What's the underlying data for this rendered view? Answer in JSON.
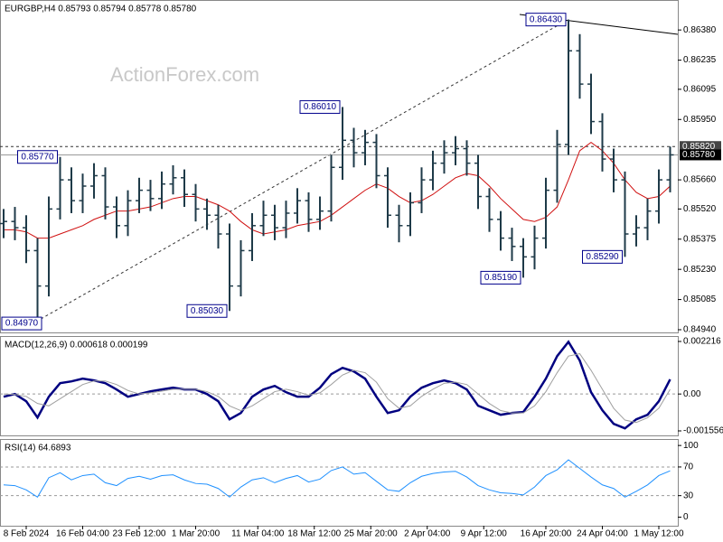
{
  "chart_data": [
    {
      "type": "ohlc",
      "title": "EURGBP,H4  0.85793 0.85794 0.85778 0.85780",
      "watermark": "ActionForex.com",
      "color": "#1e3a48",
      "xlim": [
        0,
        59
      ],
      "ylim": [
        0.84927,
        0.86524
      ],
      "yticks": [
        {
          "value": 0.8638,
          "label": "0.86380"
        },
        0.86235,
        0.86095,
        {
          "value": 0.8595,
          "label": "0.85950"
        },
        {
          "value": 0.8566,
          "label": "0.85660"
        },
        {
          "value": 0.8552,
          "label": "0.85520"
        },
        0.85375,
        {
          "value": 0.8523,
          "label": "0.85230"
        },
        0.85085,
        {
          "value": 0.8494,
          "label": "0.84940"
        }
      ],
      "open": [
        0.8545,
        0.8546,
        0.8543,
        0.8532,
        0.8515,
        0.8552,
        0.8566,
        0.8556,
        0.8563,
        0.8568,
        0.8553,
        0.8544,
        0.8556,
        0.8561,
        0.8557,
        0.8564,
        0.8567,
        0.8559,
        0.8552,
        0.8549,
        0.854,
        0.8515,
        0.8532,
        0.8544,
        0.8549,
        0.8543,
        0.855,
        0.8556,
        0.8547,
        0.8551,
        0.8572,
        0.8585,
        0.8579,
        0.8584,
        0.8568,
        0.8549,
        0.8544,
        0.8555,
        0.8566,
        0.8574,
        0.8579,
        0.8581,
        0.8574,
        0.8558,
        0.8547,
        0.8538,
        0.8534,
        0.8529,
        0.8538,
        0.8561,
        0.8583,
        0.8628,
        0.8612,
        0.8594,
        0.8576,
        0.8566,
        0.854,
        0.8543,
        0.8551,
        0.8566
      ],
      "high": [
        0.8552,
        0.8553,
        0.8549,
        0.8538,
        0.8558,
        0.8577,
        0.8572,
        0.8569,
        0.8574,
        0.8572,
        0.8558,
        0.8561,
        0.8567,
        0.8566,
        0.857,
        0.8573,
        0.8571,
        0.8564,
        0.8557,
        0.8554,
        0.8545,
        0.8537,
        0.855,
        0.8556,
        0.8554,
        0.8556,
        0.8562,
        0.856,
        0.8558,
        0.8578,
        0.8601,
        0.8591,
        0.859,
        0.8588,
        0.8572,
        0.8554,
        0.856,
        0.8572,
        0.858,
        0.8585,
        0.8587,
        0.8585,
        0.8578,
        0.8562,
        0.8551,
        0.8543,
        0.8538,
        0.8544,
        0.8567,
        0.859,
        0.8643,
        0.8636,
        0.8617,
        0.8598,
        0.8581,
        0.857,
        0.8549,
        0.8557,
        0.8571,
        0.8582
      ],
      "low": [
        0.8538,
        0.8537,
        0.8526,
        0.8497,
        0.851,
        0.8547,
        0.855,
        0.855,
        0.8557,
        0.8547,
        0.8538,
        0.8539,
        0.855,
        0.8551,
        0.8552,
        0.8559,
        0.8553,
        0.8546,
        0.8542,
        0.8533,
        0.8503,
        0.851,
        0.8527,
        0.8539,
        0.8537,
        0.8538,
        0.8545,
        0.8541,
        0.8542,
        0.8546,
        0.8566,
        0.8572,
        0.8573,
        0.8562,
        0.8543,
        0.8536,
        0.8539,
        0.855,
        0.8561,
        0.8569,
        0.8573,
        0.8568,
        0.8552,
        0.8541,
        0.8532,
        0.8527,
        0.8519,
        0.8523,
        0.8533,
        0.8555,
        0.8578,
        0.8605,
        0.8588,
        0.857,
        0.856,
        0.8529,
        0.8534,
        0.8537,
        0.8545,
        0.856
      ],
      "close": [
        0.8546,
        0.8543,
        0.8532,
        0.8515,
        0.8552,
        0.8566,
        0.8556,
        0.8563,
        0.8568,
        0.8553,
        0.8544,
        0.8556,
        0.8561,
        0.8557,
        0.8564,
        0.8567,
        0.8559,
        0.8552,
        0.8549,
        0.854,
        0.8515,
        0.8532,
        0.8544,
        0.8549,
        0.8543,
        0.855,
        0.8556,
        0.8547,
        0.8551,
        0.8572,
        0.8585,
        0.8579,
        0.8584,
        0.8568,
        0.8549,
        0.8544,
        0.8555,
        0.8566,
        0.8574,
        0.8579,
        0.8581,
        0.8574,
        0.8558,
        0.8547,
        0.8538,
        0.8534,
        0.8529,
        0.8538,
        0.8561,
        0.8583,
        0.8628,
        0.8612,
        0.8594,
        0.8576,
        0.8566,
        0.854,
        0.8543,
        0.8551,
        0.8566,
        0.8578
      ],
      "ma": {
        "color": "#d01010",
        "values": [
          0.8542,
          0.8542,
          0.8541,
          0.8538,
          0.8538,
          0.854,
          0.8542,
          0.8544,
          0.8547,
          0.8549,
          0.8551,
          0.8551,
          0.8552,
          0.8553,
          0.8555,
          0.8557,
          0.8558,
          0.8558,
          0.8556,
          0.8554,
          0.8551,
          0.8546,
          0.8542,
          0.854,
          0.8541,
          0.8542,
          0.8544,
          0.8545,
          0.8546,
          0.8549,
          0.8553,
          0.8557,
          0.8561,
          0.8564,
          0.8562,
          0.8558,
          0.8555,
          0.8556,
          0.8559,
          0.8563,
          0.8567,
          0.8569,
          0.8568,
          0.8563,
          0.8557,
          0.8552,
          0.8547,
          0.8546,
          0.8548,
          0.8553,
          0.8566,
          0.858,
          0.8584,
          0.858,
          0.8574,
          0.8566,
          0.856,
          0.8557,
          0.8558,
          0.8563
        ]
      },
      "annotations": [
        {
          "value": 0.8497,
          "label": "0.84970"
        },
        {
          "value": 0.8577,
          "label": "0.85770"
        },
        {
          "value": 0.8503,
          "label": "0.85030"
        },
        {
          "value": 0.8601,
          "label": "0.86010"
        },
        {
          "value": 0.8643,
          "label": "0.86430"
        },
        {
          "value": 0.8519,
          "label": "0.85190"
        },
        {
          "value": 0.8529,
          "label": "0.85290"
        }
      ],
      "levels": [
        {
          "value": 0.8582,
          "label": "0.85820",
          "style": "dashed",
          "color": "#444444"
        },
        {
          "value": 0.8578,
          "label": "0.85780",
          "style": "solid",
          "color": "#000000"
        }
      ]
    },
    {
      "type": "line",
      "title": "MACD(12,26,9) 0.000618 0.000199",
      "xlim": [
        0,
        59
      ],
      "ylim": [
        -0.001746,
        0.002445
      ],
      "yticks": [
        0.002216,
        {
          "value": 0,
          "label": "0.00"
        },
        -0.001556
      ],
      "zero_line": true,
      "series": [
        {
          "color": "#000080",
          "width": 2.5,
          "values": [
            -0.000114,
            0,
            -0.000305,
            -0.000991,
            -0.000114,
            0.000457,
            0.000533,
            0.000648,
            0.000572,
            0.000457,
            0.000191,
            -0.000114,
            0,
            0.000114,
            0.000191,
            0.000267,
            0.000191,
            0.000191,
            0,
            -0.000305,
            -0.001067,
            -0.0008,
            -0.000114,
            0.000191,
            0.000343,
            7.6e-05,
            -0.000114,
            -0.000114,
            0.000267,
            0.000838,
            0.001105,
            0.000953,
            0.000648,
            -0.000114,
            -0.0008,
            -0.000686,
            -0.000114,
            0.000267,
            0.000457,
            0.000572,
            0.000457,
            0.000191,
            -0.000495,
            -0.000686,
            -0.000876,
            -0.0008,
            -0.000762,
            -0.000114,
            0.000648,
            0.0016,
            0.0022,
            0.00141,
            7.6e-05,
            -0.000686,
            -0.001257,
            -0.001448,
            -0.001067,
            -0.000876,
            -0.000305,
            0.000618
          ]
        },
        {
          "color": "#a0a0a0",
          "width": 1,
          "values": [
            0,
            -2e-05,
            -0.0001,
            -0.0004,
            -0.0005,
            -0.0002,
            0.0001,
            0.0004,
            0.00055,
            0.00055,
            0.0004,
            0.00015,
            0,
            5e-05,
            0.00012,
            0.0002,
            0.0002,
            0.0002,
            0.0001,
            -0.0001,
            -0.0005,
            -0.0007,
            -0.0005,
            -0.0002,
            0.0001,
            0.0002,
            0.0001,
            -5e-05,
            5e-05,
            0.0004,
            0.0008,
            0.001,
            0.0009,
            0.0005,
            -0.0002,
            -0.0006,
            -0.0005,
            -0.0001,
            0.0002,
            0.00045,
            0.0005,
            0.0004,
            0,
            -0.0004,
            -0.0007,
            -0.0008,
            -0.0008,
            -0.0005,
            0.0001,
            0.0009,
            0.0016,
            0.0017,
            0.001,
            0.0002,
            -0.0006,
            -0.0011,
            -0.0012,
            -0.001,
            -0.0006,
            0.000199
          ]
        }
      ]
    },
    {
      "type": "line",
      "title": "RSI(14) 64.6893",
      "xlim": [
        0,
        59
      ],
      "ylim": [
        -12,
        109
      ],
      "yticks": [
        100,
        70,
        30,
        0
      ],
      "levels": [
        70,
        30
      ],
      "series": [
        {
          "color": "#1e90ff",
          "width": 1,
          "values": [
            45,
            44,
            38,
            28,
            55,
            62,
            52,
            58,
            60,
            48,
            44,
            54,
            57,
            53,
            58,
            59,
            52,
            47,
            46,
            40,
            28,
            42,
            52,
            55,
            48,
            54,
            58,
            49,
            53,
            65,
            70,
            60,
            62,
            50,
            38,
            36,
            48,
            57,
            61,
            63,
            64,
            56,
            44,
            38,
            34,
            33,
            31,
            42,
            58,
            66,
            80,
            68,
            56,
            45,
            40,
            28,
            36,
            45,
            58,
            64.6893
          ]
        }
      ],
      "xticks": [
        {
          "value": 2,
          "label": "8 Feb 2024"
        },
        {
          "value": 7,
          "label": "16 Feb 04:00"
        },
        {
          "value": 12,
          "label": "23 Feb 12:00"
        },
        {
          "value": 17,
          "label": "1 Mar 20:00"
        },
        {
          "value": 22.5,
          "label": "11 Mar 04:00"
        },
        {
          "value": 27.5,
          "label": "18 Mar 12:00"
        },
        {
          "value": 32.5,
          "label": "25 Mar 20:00"
        },
        {
          "value": 37.5,
          "label": "2 Apr 04:00"
        },
        {
          "value": 42.5,
          "label": "9 Apr 12:00"
        },
        {
          "value": 48,
          "label": "16 Apr 20:00"
        },
        {
          "value": 53,
          "label": "24 Apr 04:00"
        },
        {
          "value": 58,
          "label": "1 May 12:00"
        }
      ]
    }
  ]
}
